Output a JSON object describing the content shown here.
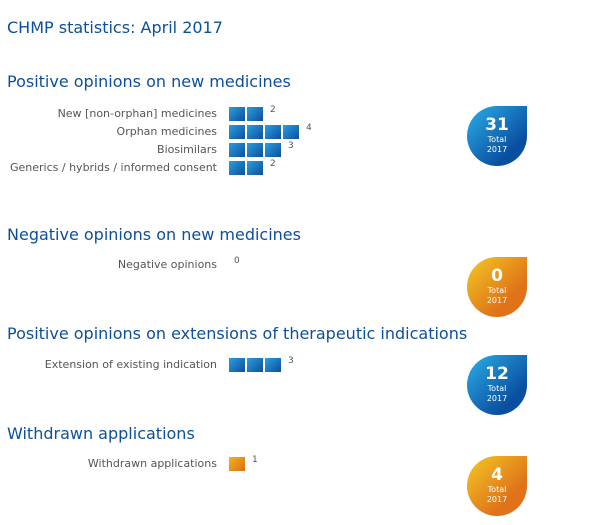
{
  "title": "CHMP statistics: April 2017",
  "chart_data": [
    {
      "type": "bar",
      "title": "Positive opinions on new medicines",
      "categories": [
        "New [non-orphan] medicines",
        "Orphan medicines",
        "Biosimilars",
        "Generics / hybrids / informed consent"
      ],
      "values": [
        2,
        4,
        3,
        2
      ],
      "total": 31,
      "total_label": "Total",
      "total_year": "2017",
      "color": "#0d4f9c"
    },
    {
      "type": "bar",
      "title": "Negative opinions on new medicines",
      "categories": [
        "Negative opinions"
      ],
      "values": [
        0
      ],
      "total": 0,
      "total_label": "Total",
      "total_year": "2017",
      "color": "#e07a18"
    },
    {
      "type": "bar",
      "title": "Positive opinions on extensions of therapeutic indications",
      "categories": [
        "Extension of existing indication"
      ],
      "values": [
        3
      ],
      "total": 12,
      "total_label": "Total",
      "total_year": "2017",
      "color": "#0d4f9c"
    },
    {
      "type": "bar",
      "title": "Withdrawn applications",
      "categories": [
        "Withdrawn applications"
      ],
      "values": [
        1
      ],
      "total": 4,
      "total_label": "Total",
      "total_year": "2017",
      "color": "#e07a18"
    }
  ]
}
